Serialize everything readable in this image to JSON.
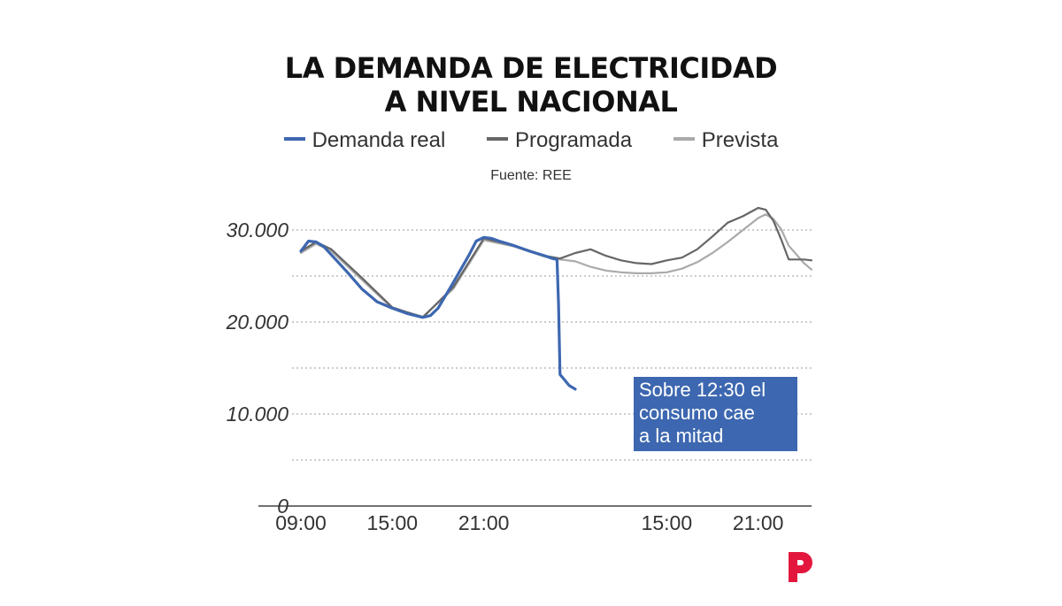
{
  "title_lines": [
    "LA DEMANDA DE ELECTRICIDAD",
    "A NIVEL NACIONAL"
  ],
  "source": "Fuente: REE",
  "annotation": {
    "lines": [
      "Sobre 12:30 el",
      "consumo cae",
      "a la mitad"
    ],
    "color": "#3d67b0"
  },
  "logo": {
    "icon": "p-logo-icon",
    "color": "#e3173e"
  },
  "chart_data": {
    "type": "line",
    "xlabel": "",
    "ylabel": "",
    "x_unit": "hours since 09:00 of the first day",
    "xlim": [
      0,
      33.5
    ],
    "ylim": [
      0,
      30000
    ],
    "y_ticks": [
      0,
      10000,
      20000,
      30000
    ],
    "y_tick_labels": [
      "0",
      "10.000",
      "20.000",
      "30.000"
    ],
    "y_gridlines": [
      5000,
      10000,
      15000,
      20000,
      25000,
      30000
    ],
    "x_tick_positions": [
      0,
      6,
      12,
      18,
      24,
      30
    ],
    "x_tick_labels": [
      "09:00",
      "15:00",
      "21:00",
      "",
      "15:00",
      "21:00"
    ],
    "legend_position": "top",
    "grid": true,
    "series": [
      {
        "name": "Demanda real",
        "color": "#3d67b0",
        "x": [
          0,
          0.5,
          1,
          1.5,
          2,
          3,
          4,
          5,
          6,
          7,
          8,
          8.5,
          9,
          10,
          11,
          11.5,
          12,
          12.5,
          13,
          14,
          15,
          16,
          16.5,
          16.8,
          16.9,
          17,
          17.3,
          17.6,
          18
        ],
        "y": [
          27700,
          28800,
          28700,
          28200,
          27300,
          25500,
          23600,
          22200,
          21500,
          20900,
          20500,
          20700,
          21500,
          24300,
          27200,
          28800,
          29200,
          29100,
          28800,
          28300,
          27700,
          27200,
          26900,
          26800,
          22000,
          14300,
          13700,
          13100,
          12700
        ]
      },
      {
        "name": "Programada",
        "color": "#666666",
        "x": [
          0,
          1,
          2,
          4,
          6,
          8,
          10,
          12,
          14,
          16,
          17,
          18,
          19,
          20,
          21,
          22,
          23,
          24,
          25,
          26,
          27,
          28,
          29,
          30,
          30.5,
          31,
          31.5,
          32,
          33,
          33.5
        ],
        "y": [
          27700,
          28700,
          27900,
          24800,
          21600,
          20500,
          23800,
          29100,
          28300,
          27200,
          26900,
          27500,
          27900,
          27200,
          26700,
          26400,
          26300,
          26700,
          27000,
          27900,
          29300,
          30800,
          31500,
          32400,
          32200,
          31000,
          29000,
          26800,
          26800,
          26700
        ]
      },
      {
        "name": "Prevista",
        "color": "#aaaaaa",
        "x": [
          0,
          1,
          2,
          4,
          6,
          8,
          10,
          12,
          14,
          16,
          17,
          18,
          19,
          20,
          21,
          22,
          23,
          24,
          25,
          26,
          27,
          28,
          29,
          30,
          30.5,
          31,
          31.5,
          32,
          33,
          33.5
        ],
        "y": [
          27500,
          28500,
          27700,
          24600,
          21500,
          20600,
          23600,
          28900,
          28200,
          27100,
          26800,
          26600,
          26000,
          25600,
          25400,
          25300,
          25300,
          25400,
          25800,
          26500,
          27500,
          28700,
          30000,
          31300,
          31700,
          31200,
          30100,
          28300,
          26400,
          25700
        ]
      }
    ]
  }
}
